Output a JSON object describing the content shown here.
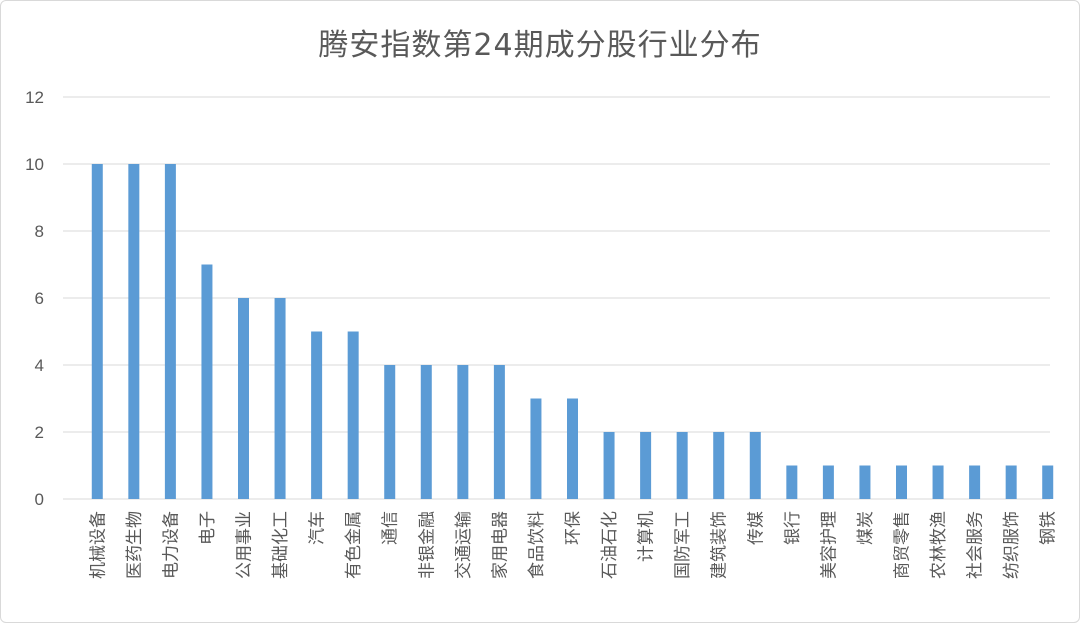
{
  "chart_data": {
    "type": "bar",
    "title": "腾安指数第24期成分股行业分布",
    "categories": [
      "机械设备",
      "医药生物",
      "电力设备",
      "电子",
      "公用事业",
      "基础化工",
      "汽车",
      "有色金属",
      "通信",
      "非银金融",
      "交通运输",
      "家用电器",
      "食品饮料",
      "环保",
      "石油石化",
      "计算机",
      "国防军工",
      "建筑装饰",
      "传媒",
      "银行",
      "美容护理",
      "煤炭",
      "商贸零售",
      "农林牧渔",
      "社会服务",
      "纺织服饰",
      "钢铁"
    ],
    "values": [
      10,
      10,
      10,
      7,
      6,
      6,
      5,
      5,
      4,
      4,
      4,
      4,
      3,
      3,
      2,
      2,
      2,
      2,
      2,
      1,
      1,
      1,
      1,
      1,
      1,
      1,
      1
    ],
    "yticks": [
      "0",
      "2",
      "4",
      "6",
      "8",
      "10",
      "12"
    ],
    "ylim": [
      0,
      12
    ],
    "grid": true,
    "bar_color": "#5b9bd5",
    "grid_color": "#d9d9d9"
  }
}
